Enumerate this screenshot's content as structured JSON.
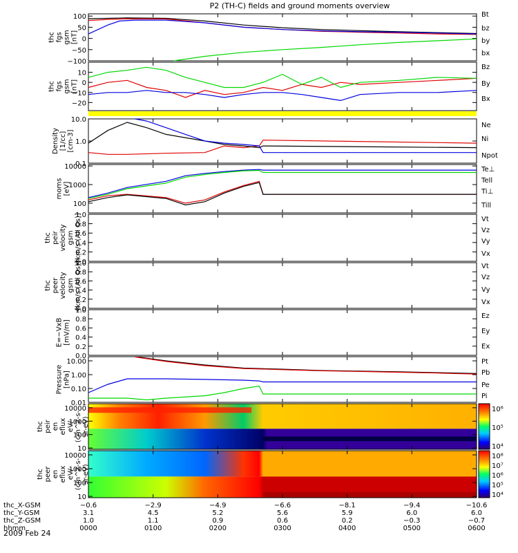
{
  "title": "P2 (TH-C) fields and ground moments overview",
  "date_label": "2009 Feb 24",
  "colors": {
    "black": "#000000",
    "red": "#e00000",
    "green": "#00d800",
    "blue": "#0000e0",
    "yellow": "#ffff00",
    "axis": "#000000"
  },
  "chart_data": [
    {
      "type": "line",
      "ylabel": [
        "thc",
        "fgs",
        "gsm",
        "[nT]"
      ],
      "ylim": [
        -100,
        110
      ],
      "yticks": [
        100,
        50,
        0,
        -50,
        -100
      ],
      "yticklabels": [
        "100",
        "50",
        "0",
        "−50",
        "−100"
      ],
      "series": [
        {
          "name": "Bt",
          "color": "black",
          "x": [
            0,
            0.05,
            0.1,
            0.2,
            0.3,
            0.4,
            0.5,
            0.6,
            0.7,
            0.8,
            0.9,
            1
          ],
          "y": [
            88,
            90,
            92,
            90,
            78,
            60,
            48,
            40,
            35,
            30,
            26,
            22
          ]
        },
        {
          "name": "bz",
          "color": "red",
          "x": [
            0,
            0.05,
            0.1,
            0.2,
            0.3,
            0.4,
            0.5,
            0.6,
            0.7,
            0.8,
            0.9,
            1
          ],
          "y": [
            80,
            85,
            88,
            87,
            70,
            50,
            40,
            32,
            28,
            24,
            20,
            18
          ]
        },
        {
          "name": "by",
          "color": "green",
          "x": [
            0.22,
            0.3,
            0.4,
            0.5,
            0.6,
            0.7,
            0.8,
            0.9,
            1
          ],
          "y": [
            -100,
            -80,
            -62,
            -50,
            -40,
            -28,
            -18,
            -10,
            -2
          ]
        },
        {
          "name": "bx",
          "color": "blue",
          "x": [
            0,
            0.05,
            0.08,
            0.12,
            0.2,
            0.3,
            0.4,
            0.5,
            0.6,
            0.7,
            0.8,
            0.9,
            1
          ],
          "y": [
            20,
            60,
            78,
            82,
            82,
            70,
            50,
            40,
            34,
            30,
            28,
            24,
            20
          ]
        }
      ]
    },
    {
      "type": "line",
      "ylabel": [
        "thc",
        "fgs",
        "gsm",
        "[nT]"
      ],
      "ylim": [
        -28,
        20
      ],
      "yticks": [
        10,
        0,
        -10,
        -20
      ],
      "yticklabels": [
        "10",
        "0",
        "−10",
        "−20"
      ],
      "series": [
        {
          "name": "Bz",
          "color": "red",
          "x": [
            0,
            0.05,
            0.1,
            0.15,
            0.2,
            0.25,
            0.3,
            0.35,
            0.4,
            0.45,
            0.5,
            0.55,
            0.6,
            0.65,
            0.7,
            0.8,
            0.9,
            1
          ],
          "y": [
            -5,
            0,
            2,
            -5,
            -8,
            -15,
            -8,
            -12,
            -10,
            -5,
            -8,
            -2,
            -5,
            0,
            -2,
            0,
            2,
            4
          ]
        },
        {
          "name": "By",
          "color": "green",
          "x": [
            0,
            0.05,
            0.1,
            0.15,
            0.2,
            0.25,
            0.3,
            0.35,
            0.4,
            0.45,
            0.5,
            0.55,
            0.6,
            0.65,
            0.7,
            0.8,
            0.9,
            1
          ],
          "y": [
            5,
            10,
            12,
            15,
            12,
            5,
            0,
            -5,
            -5,
            0,
            8,
            -2,
            5,
            -5,
            0,
            2,
            5,
            4
          ]
        },
        {
          "name": "Bx",
          "color": "blue",
          "x": [
            0,
            0.05,
            0.1,
            0.15,
            0.2,
            0.25,
            0.3,
            0.35,
            0.4,
            0.45,
            0.5,
            0.55,
            0.6,
            0.65,
            0.7,
            0.8,
            0.9,
            1
          ],
          "y": [
            -12,
            -10,
            -10,
            -8,
            -10,
            -10,
            -12,
            -15,
            -12,
            -10,
            -10,
            -12,
            -15,
            -18,
            -12,
            -10,
            -10,
            -8
          ]
        }
      ]
    },
    {
      "type": "line",
      "ylabel": [
        "Density",
        "[1/cc]",
        "[cm-3]"
      ],
      "ylog": true,
      "ylim": [
        0.1,
        10
      ],
      "yticks": [
        10,
        1,
        0.1
      ],
      "yticklabels": [
        "10.0",
        "1.0",
        "0.1"
      ],
      "series": [
        {
          "name": "Ne",
          "color": "red",
          "x": [
            0,
            0.05,
            0.1,
            0.2,
            0.3,
            0.35,
            0.4,
            0.44,
            0.45,
            1
          ],
          "y": [
            0.3,
            0.25,
            0.25,
            0.28,
            0.3,
            0.6,
            0.5,
            0.6,
            1.1,
            0.8
          ]
        },
        {
          "name": "Ni",
          "color": "black",
          "x": [
            0,
            0.05,
            0.1,
            0.15,
            0.2,
            0.3,
            0.35,
            0.4,
            0.44,
            0.45,
            1
          ],
          "y": [
            0.8,
            3,
            7,
            4,
            2,
            1,
            0.7,
            0.6,
            0.5,
            0.6,
            0.5
          ]
        },
        {
          "name": "Npot",
          "color": "blue",
          "x": [
            0.12,
            0.15,
            0.2,
            0.25,
            0.3,
            0.35,
            0.4,
            0.44,
            0.45,
            1
          ],
          "y": [
            10,
            8,
            4,
            2,
            1,
            0.8,
            0.7,
            0.6,
            0.3,
            0.3
          ]
        }
      ]
    },
    {
      "type": "line",
      "ylabel": [
        "moms",
        "[eV]"
      ],
      "ylog": true,
      "ylim": [
        30,
        12000
      ],
      "yticks": [
        10000,
        1000,
        100
      ],
      "yticklabels": [
        "10000",
        "1000",
        "100"
      ],
      "series": [
        {
          "name": "Te⊥",
          "color": "red",
          "x": [
            0,
            0.05,
            0.1,
            0.2,
            0.25,
            0.3,
            0.35,
            0.4,
            0.44,
            0.45,
            1
          ],
          "y": [
            150,
            250,
            300,
            200,
            100,
            150,
            400,
            900,
            1500,
            300,
            300
          ]
        },
        {
          "name": "Tell",
          "color": "black",
          "x": [
            0,
            0.05,
            0.1,
            0.2,
            0.25,
            0.3,
            0.35,
            0.4,
            0.44,
            0.45,
            1
          ],
          "y": [
            120,
            200,
            280,
            180,
            80,
            120,
            350,
            800,
            1300,
            300,
            300
          ]
        },
        {
          "name": "Ti⊥",
          "color": "blue",
          "x": [
            0,
            0.05,
            0.1,
            0.2,
            0.25,
            0.3,
            0.35,
            0.4,
            0.44,
            0.45,
            1
          ],
          "y": [
            200,
            350,
            700,
            1500,
            3000,
            4000,
            5000,
            6000,
            6500,
            6000,
            6000
          ]
        },
        {
          "name": "Till",
          "color": "green",
          "x": [
            0,
            0.05,
            0.1,
            0.2,
            0.25,
            0.3,
            0.35,
            0.4,
            0.44,
            0.45,
            1
          ],
          "y": [
            180,
            300,
            600,
            1200,
            2500,
            3500,
            4500,
            5500,
            5800,
            4500,
            4500
          ]
        }
      ]
    },
    {
      "type": "line",
      "ylabel": [
        "thc",
        "peir",
        "velocity",
        "gsm",
        "[km/s (All Qs)]"
      ],
      "ylim": [
        0,
        1.0
      ],
      "yticks": [
        0,
        0.2,
        0.4,
        0.6,
        0.8,
        1.0
      ],
      "yticklabels": [
        "0.0",
        "0.2",
        "0.4",
        "0.6",
        "0.8",
        "1.0"
      ],
      "series": [
        {
          "name": "Vt",
          "color": "black",
          "x": [],
          "y": []
        },
        {
          "name": "Vz",
          "color": "red",
          "x": [],
          "y": []
        },
        {
          "name": "Vy",
          "color": "green",
          "x": [],
          "y": []
        },
        {
          "name": "Vx",
          "color": "blue",
          "x": [],
          "y": []
        }
      ]
    },
    {
      "type": "line",
      "ylabel": [
        "thc",
        "peer",
        "velocity",
        "gsm",
        "[km/s (All Qs)]"
      ],
      "ylim": [
        0,
        1.0
      ],
      "yticks": [
        0,
        0.2,
        0.4,
        0.6,
        0.8,
        1.0
      ],
      "yticklabels": [
        "0.0",
        "0.2",
        "0.4",
        "0.6",
        "0.8",
        "1.0"
      ],
      "series": [
        {
          "name": "Vt",
          "color": "black",
          "x": [],
          "y": []
        },
        {
          "name": "Vz",
          "color": "red",
          "x": [],
          "y": []
        },
        {
          "name": "Vy",
          "color": "green",
          "x": [],
          "y": []
        },
        {
          "name": "Vx",
          "color": "blue",
          "x": [],
          "y": []
        }
      ]
    },
    {
      "type": "line",
      "ylabel": [
        "E=−VxB",
        "[mV/m]"
      ],
      "ylim": [
        0,
        1.0
      ],
      "yticks": [
        0,
        0.2,
        0.4,
        0.6,
        0.8,
        1.0
      ],
      "yticklabels": [
        "0.0",
        "0.2",
        "0.4",
        "0.6",
        "0.8",
        "1.0"
      ],
      "series": [
        {
          "name": "Ez",
          "color": "red",
          "x": [],
          "y": []
        },
        {
          "name": "Ey",
          "color": "green",
          "x": [],
          "y": []
        },
        {
          "name": "Ex",
          "color": "blue",
          "x": [],
          "y": []
        }
      ]
    },
    {
      "type": "line",
      "ylabel": [
        "Pressure",
        "[nPa]"
      ],
      "ylog": true,
      "ylim": [
        0.01,
        20
      ],
      "yticks": [
        10,
        1,
        0.1,
        0.01
      ],
      "yticklabels": [
        "10.00",
        "1.00",
        "0.10",
        "0.01"
      ],
      "series": [
        {
          "name": "Pt",
          "color": "black",
          "x": [
            0.12,
            0.2,
            0.3,
            0.4,
            0.5,
            0.6,
            0.7,
            0.8,
            0.9,
            1
          ],
          "y": [
            20,
            10,
            5,
            3,
            2.5,
            2,
            1.8,
            1.6,
            1.4,
            1.2
          ]
        },
        {
          "name": "Pb",
          "color": "red",
          "x": [
            0.12,
            0.2,
            0.3,
            0.4,
            0.5,
            0.6,
            0.7,
            0.8,
            0.9,
            1
          ],
          "y": [
            19,
            9,
            4.5,
            2.8,
            2.3,
            1.9,
            1.7,
            1.5,
            1.3,
            1.1
          ]
        },
        {
          "name": "Pe",
          "color": "green",
          "x": [
            0,
            0.05,
            0.1,
            0.15,
            0.2,
            0.3,
            0.35,
            0.4,
            0.44,
            0.45,
            1
          ],
          "y": [
            0.02,
            0.02,
            0.02,
            0.015,
            0.02,
            0.03,
            0.05,
            0.1,
            0.15,
            0.04,
            0.04
          ]
        },
        {
          "name": "Pi",
          "color": "blue",
          "x": [
            0,
            0.05,
            0.1,
            0.2,
            0.3,
            0.4,
            0.44,
            0.45,
            1
          ],
          "y": [
            0.05,
            0.2,
            0.5,
            0.5,
            0.45,
            0.4,
            0.35,
            0.3,
            0.3
          ]
        }
      ]
    },
    {
      "type": "heatmap",
      "ylabel": [
        "thc",
        "peir",
        "en",
        "eflux",
        "eV/",
        "(cm^2-s-",
        "sr-eV)"
      ],
      "ylog": true,
      "ylim": [
        8,
        20000
      ],
      "yticks": [
        10000,
        1000,
        100,
        10
      ],
      "yticklabels": [
        "10000",
        "1000",
        "100",
        "10"
      ],
      "colorbar": {
        "ticks": [
          "10⁶",
          "10⁵",
          "10⁴"
        ]
      }
    },
    {
      "type": "heatmap",
      "ylabel": [
        "thc",
        "peer",
        "en",
        "eflux",
        "eV/",
        "(cm^2-s-",
        "sr-eV)"
      ],
      "ylog": true,
      "ylim": [
        8,
        20000
      ],
      "yticks": [
        10000,
        1000,
        100,
        10
      ],
      "yticklabels": [
        "10000",
        "1000",
        "100",
        "10"
      ],
      "colorbar": {
        "ticks": [
          "10⁸",
          "10⁷",
          "10⁶",
          "10⁵",
          "10⁴"
        ]
      }
    }
  ],
  "x_axis": {
    "row_labels": [
      "thc_X-GSM",
      "thc_Y-GSM",
      "thc_Z-GSM",
      "hhmm"
    ],
    "columns": [
      [
        "−0.6",
        "3.1",
        "1.0",
        "0000"
      ],
      [
        "−2.9",
        "4.5",
        "1.1",
        "0100"
      ],
      [
        "−4.9",
        "5.2",
        "0.9",
        "0200"
      ],
      [
        "−6.6",
        "5.6",
        "0.6",
        "0300"
      ],
      [
        "−8.1",
        "5.9",
        "0.2",
        "0400"
      ],
      [
        "−9.4",
        "6.0",
        "−0.3",
        "0500"
      ],
      [
        "−10.6",
        "6.0",
        "−0.7",
        "0600"
      ]
    ]
  }
}
